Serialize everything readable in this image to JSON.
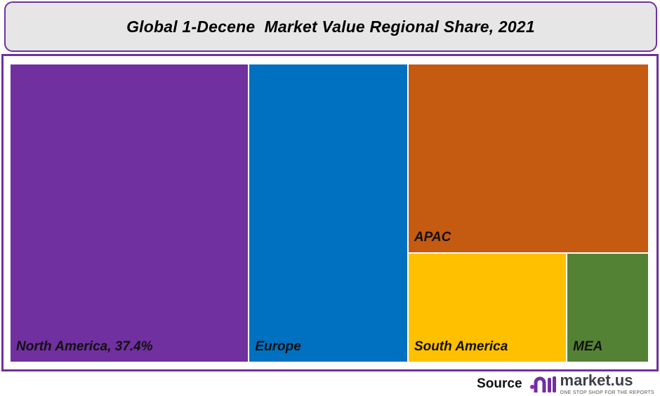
{
  "chart_data": {
    "type": "treemap",
    "title": "Global 1-Decene  Market Value Regional Share, 2021",
    "items": [
      {
        "name": "North America",
        "label": "North America, 37.4%",
        "value": 37.4,
        "color": "#7030a0"
      },
      {
        "name": "Europe",
        "label": "Europe",
        "value": 24.9,
        "color": "#0070c0"
      },
      {
        "name": "APAC",
        "label": "APAC",
        "value": 23.9,
        "color": "#c55a11"
      },
      {
        "name": "South America",
        "label": "South America",
        "value": 9.1,
        "color": "#ffc000"
      },
      {
        "name": "MEA",
        "label": "MEA",
        "value": 4.7,
        "color": "#548235"
      }
    ]
  },
  "footer": {
    "source_label": "Source",
    "brand": "market.us",
    "tagline": "ONE STOP SHOP FOR THE REPORTS"
  },
  "colors": {
    "frame": "#7030a0",
    "title_bg": "#e6e6e6"
  }
}
